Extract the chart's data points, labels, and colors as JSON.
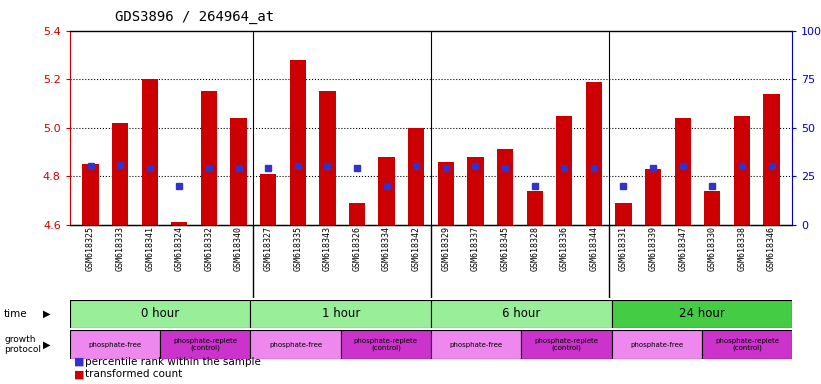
{
  "title": "GDS3896 / 264964_at",
  "samples": [
    "GSM618325",
    "GSM618333",
    "GSM618341",
    "GSM618324",
    "GSM618332",
    "GSM618340",
    "GSM618327",
    "GSM618335",
    "GSM618343",
    "GSM618326",
    "GSM618334",
    "GSM618342",
    "GSM618329",
    "GSM618337",
    "GSM618345",
    "GSM618328",
    "GSM618336",
    "GSM618344",
    "GSM618331",
    "GSM618339",
    "GSM618347",
    "GSM618330",
    "GSM618338",
    "GSM618346"
  ],
  "transformed_count": [
    4.85,
    5.02,
    5.2,
    4.61,
    5.15,
    5.04,
    4.81,
    5.28,
    5.15,
    4.69,
    4.88,
    5.0,
    4.86,
    4.88,
    4.91,
    4.74,
    5.05,
    5.19,
    4.69,
    4.83,
    5.04,
    4.74,
    5.05,
    5.14
  ],
  "percentile_rank": [
    30,
    31,
    29,
    20,
    29,
    29,
    29,
    30,
    30,
    29,
    20,
    30,
    29,
    30,
    29,
    20,
    29,
    29,
    20,
    29,
    30,
    20,
    30,
    30
  ],
  "ylim_left": [
    4.6,
    5.4
  ],
  "ylim_right": [
    0,
    100
  ],
  "yticks_left": [
    4.6,
    4.8,
    5.0,
    5.2,
    5.4
  ],
  "yticks_right": [
    0,
    25,
    50,
    75,
    100
  ],
  "bar_color": "#cc0000",
  "dot_color": "#3333cc",
  "background_color": "#ffffff",
  "left_axis_color": "#cc0000",
  "right_axis_color": "#0000cc",
  "time_labels": [
    "0 hour",
    "1 hour",
    "6 hour",
    "24 hour"
  ],
  "time_boundaries": [
    0,
    6,
    12,
    18,
    24
  ],
  "time_colors": [
    "#99ee99",
    "#99ee99",
    "#99ee99",
    "#44cc44"
  ],
  "prot_boundaries": [
    0,
    3,
    6,
    9,
    12,
    15,
    18,
    21,
    24
  ],
  "prot_labels": [
    "phosphate-free",
    "phosphate-replete\n(control)",
    "phosphate-free",
    "phosphate-replete\n(control)",
    "phosphate-free",
    "phosphate-replete\n(control)",
    "phosphate-free",
    "phosphate-replete\n(control)"
  ],
  "prot_colors": [
    "#ee88ee",
    "#cc33cc",
    "#ee88ee",
    "#cc33cc",
    "#ee88ee",
    "#cc33cc",
    "#ee88ee",
    "#cc33cc"
  ],
  "group_dividers": [
    6,
    12,
    18
  ],
  "dotted_lines": [
    4.8,
    5.0,
    5.2
  ]
}
